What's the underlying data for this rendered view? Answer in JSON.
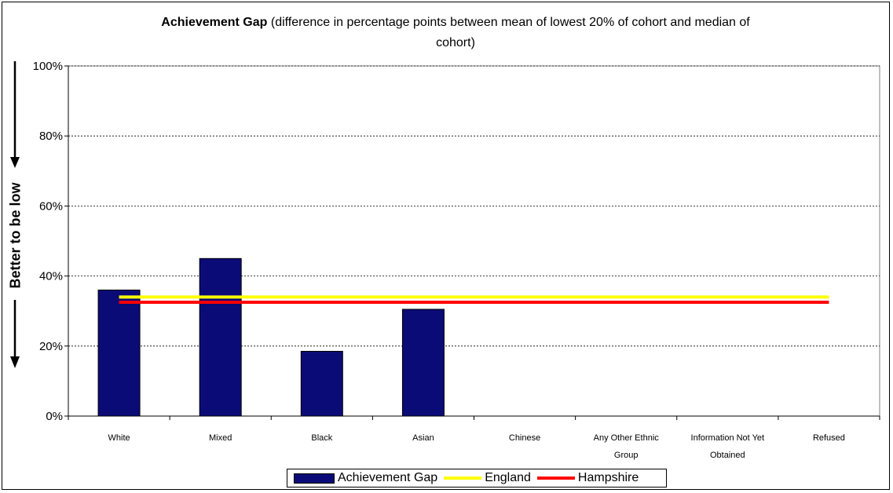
{
  "chart_data": {
    "type": "bar",
    "title_bold": "Achievement Gap",
    "title_rest_line1": " (difference in percentage points between mean of lowest 20% of cohort and median of",
    "title_rest_line2": "cohort)",
    "ylabel": "Better to be low",
    "ylim": [
      0,
      100
    ],
    "yticks": [
      "0%",
      "20%",
      "40%",
      "60%",
      "80%",
      "100%"
    ],
    "grid": true,
    "categories": [
      "White",
      "Mixed",
      "Black",
      "Asian",
      "Chinese",
      "Any Other Ethnic Group",
      "Information Not Yet Obtained",
      "Refused"
    ],
    "category_lines": [
      [
        "White"
      ],
      [
        "Mixed"
      ],
      [
        "Black"
      ],
      [
        "Asian"
      ],
      [
        "Chinese"
      ],
      [
        "Any Other Ethnic",
        "Group"
      ],
      [
        "Information Not Yet",
        "Obtained"
      ],
      [
        "Refused"
      ]
    ],
    "series": [
      {
        "name": "Achievement Gap",
        "type": "bar",
        "values": [
          36,
          45,
          18.5,
          30.5,
          null,
          null,
          null,
          null
        ],
        "color": "#0b0b77"
      },
      {
        "name": "England",
        "type": "line",
        "value": 34,
        "color": "#ffff00"
      },
      {
        "name": "Hampshire",
        "type": "line",
        "value": 32.5,
        "color": "#ff0000"
      }
    ],
    "legend_position": "bottom"
  }
}
